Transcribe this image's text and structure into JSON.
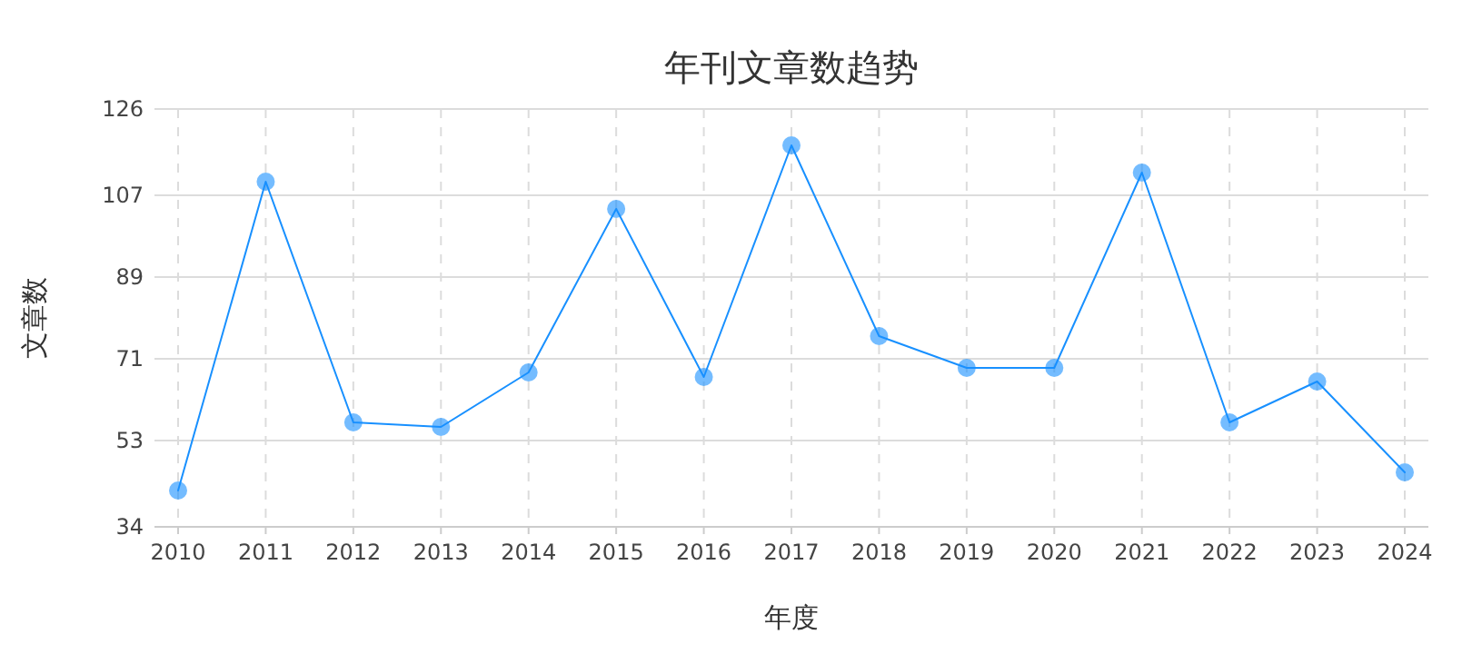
{
  "chart_data": {
    "type": "line",
    "title": "年刊文章数趋势",
    "xlabel": "年度",
    "ylabel": "文章数",
    "categories": [
      "2010",
      "2011",
      "2012",
      "2013",
      "2014",
      "2015",
      "2016",
      "2017",
      "2018",
      "2019",
      "2020",
      "2021",
      "2022",
      "2023",
      "2024"
    ],
    "series": [
      {
        "color": "#1890ff",
        "values": [
          42,
          110,
          57,
          56,
          68,
          104,
          67,
          118,
          76,
          69,
          69,
          112,
          57,
          66,
          46
        ]
      }
    ],
    "ylim": [
      34,
      126
    ],
    "yticks": [
      34,
      53,
      71,
      89,
      107,
      126
    ],
    "grid": true,
    "marker": "circle",
    "line_style": "solid"
  }
}
